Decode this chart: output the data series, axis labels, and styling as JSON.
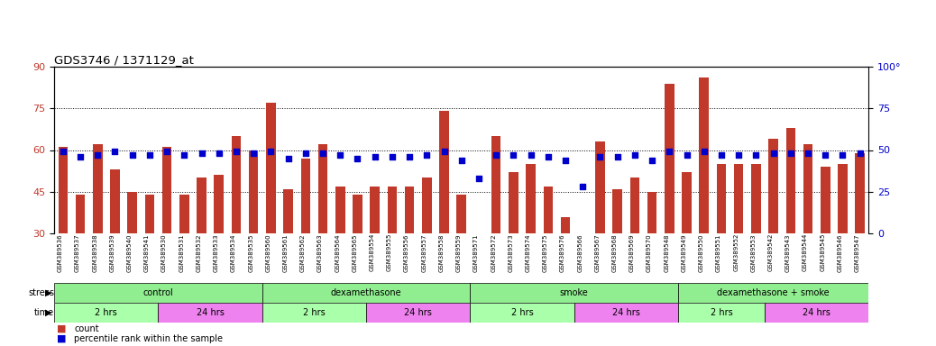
{
  "title": "GDS3746 / 1371129_at",
  "samples": [
    "GSM389536",
    "GSM389537",
    "GSM389538",
    "GSM389539",
    "GSM389540",
    "GSM389541",
    "GSM389530",
    "GSM389531",
    "GSM389532",
    "GSM389533",
    "GSM389534",
    "GSM389535",
    "GSM389560",
    "GSM389561",
    "GSM389562",
    "GSM389563",
    "GSM389564",
    "GSM389565",
    "GSM389554",
    "GSM389555",
    "GSM389556",
    "GSM389557",
    "GSM389558",
    "GSM389559",
    "GSM389571",
    "GSM389572",
    "GSM389573",
    "GSM389574",
    "GSM389575",
    "GSM389576",
    "GSM389566",
    "GSM389567",
    "GSM389568",
    "GSM389569",
    "GSM389570",
    "GSM389548",
    "GSM389549",
    "GSM389550",
    "GSM389551",
    "GSM389552",
    "GSM389553",
    "GSM389542",
    "GSM389543",
    "GSM389544",
    "GSM389545",
    "GSM389546",
    "GSM389547"
  ],
  "bar_values": [
    61,
    44,
    62,
    53,
    45,
    44,
    61,
    44,
    50,
    51,
    65,
    60,
    77,
    46,
    57,
    62,
    47,
    44,
    47,
    47,
    47,
    50,
    74,
    44,
    30,
    65,
    52,
    55,
    47,
    36,
    22,
    63,
    46,
    50,
    45,
    84,
    52,
    86,
    55,
    55,
    55,
    64,
    68,
    62,
    54,
    55,
    59
  ],
  "dot_values": [
    49,
    46,
    47,
    49,
    47,
    47,
    49,
    47,
    48,
    48,
    49,
    48,
    49,
    45,
    48,
    48,
    47,
    45,
    46,
    46,
    46,
    47,
    49,
    44,
    33,
    47,
    47,
    47,
    46,
    44,
    28,
    46,
    46,
    47,
    44,
    49,
    47,
    49,
    47,
    47,
    47,
    48,
    48,
    48,
    47,
    47,
    48
  ],
  "ylim_left": [
    30,
    90
  ],
  "yticks_left": [
    30,
    45,
    60,
    75,
    90
  ],
  "ylim_right": [
    0,
    100
  ],
  "yticks_right": [
    0,
    25,
    50,
    75,
    100
  ],
  "bar_color": "#c0392b",
  "dot_color": "#0000cc",
  "bg_color": "#ffffff",
  "gridline_color": "#000000",
  "stress_colors": [
    "#90ee90",
    "#90ee90",
    "#90ee90",
    "#90ee90"
  ],
  "stress_labels": [
    "control",
    "dexamethasone",
    "smoke",
    "dexamethasone + smoke"
  ],
  "stress_ranges": [
    [
      0,
      12
    ],
    [
      12,
      24
    ],
    [
      24,
      36
    ],
    [
      36,
      47
    ]
  ],
  "time_colors": [
    "#aaffaa",
    "#ee82ee",
    "#aaffaa",
    "#ee82ee",
    "#aaffaa",
    "#ee82ee",
    "#aaffaa",
    "#ee82ee"
  ],
  "time_labels": [
    "2 hrs",
    "24 hrs",
    "2 hrs",
    "24 hrs",
    "2 hrs",
    "24 hrs",
    "2 hrs",
    "24 hrs"
  ],
  "time_ranges": [
    [
      0,
      6
    ],
    [
      6,
      12
    ],
    [
      12,
      18
    ],
    [
      18,
      24
    ],
    [
      24,
      30
    ],
    [
      30,
      36
    ],
    [
      36,
      41
    ],
    [
      41,
      47
    ]
  ]
}
